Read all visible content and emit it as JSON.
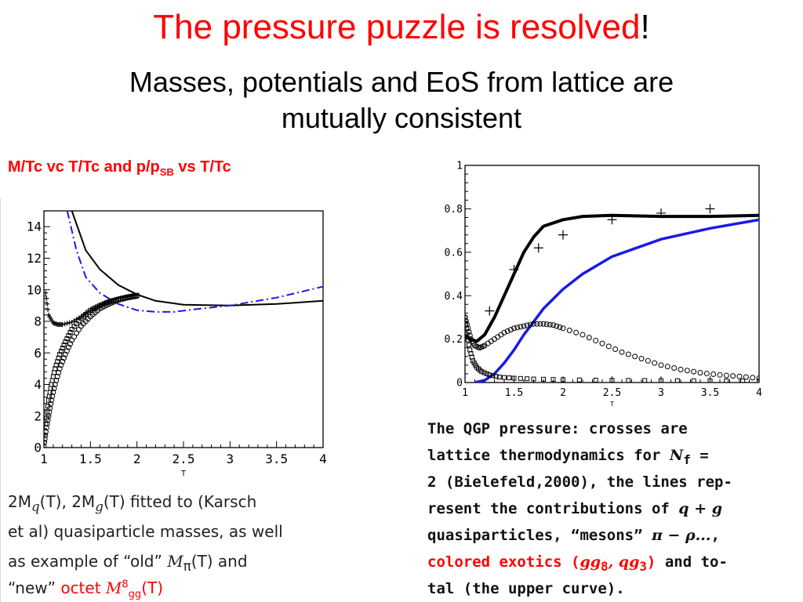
{
  "title": {
    "red": "The pressure puzzle is resolved",
    "black": "!"
  },
  "subtitle": {
    "line1": "Masses, potentials and EoS from lattice are",
    "line2": "mutually consistent"
  },
  "left_label": {
    "a": "M/Tc vc T/Tc  and p/p",
    "sub": "SB",
    "b": " vs T/Tc"
  },
  "left_caption": {
    "l1a": "2M",
    "l1b": "q",
    "l1c": "(T), 2M",
    "l1d": "g",
    "l1e": "(T) fitted to (Karsch",
    "l2": "et al) quasiparticle masses, as well",
    "l3a": "as example of “old” ",
    "l3b": "M",
    "l3c": "π",
    "l3d": "(T) and",
    "l4a": "“new” ",
    "l4b": "octet ",
    "l4c": "M",
    "l4d": "8",
    "l4e": "gg",
    "l4f": "(T)"
  },
  "right_caption": {
    "l1": "The QGP pressure:  crosses are",
    "l2a": "lattice thermodynamics for ",
    "l2b": "N",
    "l2c": "f",
    "l2d": " =",
    "l3": "2 (Bielefeld,2000), the lines rep-",
    "l4a": "resent the contributions of ",
    "l4b": "q + g",
    "l5a": "quasiparticles, “mesons” ",
    "l5b": "π − ρ...",
    "l5c": ",",
    "l6a": "colored exotics (",
    "l6b": "gg",
    "l6c": "8",
    "l6d": ", qg",
    "l6e": "3",
    "l6f": ")",
    "l6g": " and to-",
    "l7": "tal (the upper curve)."
  },
  "chart_data": [
    {
      "type": "line",
      "xlabel": "T",
      "xlim": [
        1,
        4
      ],
      "ylim": [
        0,
        15
      ],
      "xticks": [
        "1",
        "1.5",
        "2",
        "2.5",
        "3",
        "3.5",
        "4"
      ],
      "yticks": [
        "0",
        "2",
        "4",
        "6",
        "8",
        "10",
        "12",
        "14"
      ],
      "colors": {
        "black": "#000000",
        "blue": "#1a1ae6"
      },
      "series": [
        {
          "style": "black-solid",
          "x": [
            1.3,
            1.45,
            1.6,
            1.8,
            2.0,
            2.2,
            2.5,
            3.0,
            3.5,
            4.0
          ],
          "y": [
            15,
            12.5,
            11.3,
            10.3,
            9.7,
            9.3,
            9.05,
            9.0,
            9.1,
            9.3
          ]
        },
        {
          "style": "blue-dashdot",
          "x": [
            1.25,
            1.35,
            1.45,
            1.6,
            1.8,
            2.0,
            2.2,
            2.4,
            2.6,
            3.0,
            3.5,
            4.0
          ],
          "y": [
            15,
            12.5,
            10.8,
            9.8,
            9.1,
            8.7,
            8.6,
            8.6,
            8.75,
            9.0,
            9.5,
            10.2
          ]
        },
        {
          "style": "crosses",
          "x": [
            1.02,
            1.05,
            1.1,
            1.15,
            1.2,
            1.3,
            1.4,
            1.5,
            1.6,
            1.7,
            1.8,
            1.9,
            2.0
          ],
          "y": [
            9.8,
            8.4,
            7.9,
            7.8,
            7.8,
            7.95,
            8.3,
            8.7,
            9.0,
            9.25,
            9.45,
            9.55,
            9.65
          ]
        },
        {
          "style": "squares",
          "x": [
            1.02,
            1.05,
            1.08,
            1.12,
            1.17,
            1.23,
            1.3,
            1.4,
            1.5,
            1.6,
            1.7,
            1.8,
            1.9,
            2.0
          ],
          "y": [
            1.5,
            3.0,
            4.0,
            5.0,
            5.9,
            6.7,
            7.5,
            8.2,
            8.7,
            9.0,
            9.25,
            9.4,
            9.55,
            9.65
          ]
        },
        {
          "style": "circles",
          "x": [
            1.0,
            1.02,
            1.05,
            1.08,
            1.12,
            1.17,
            1.23,
            1.3,
            1.4,
            1.5,
            1.6,
            1.7,
            1.8,
            1.9,
            2.0
          ],
          "y": [
            0.1,
            1.0,
            2.0,
            3.0,
            4.0,
            5.0,
            5.9,
            6.8,
            7.7,
            8.3,
            8.8,
            9.1,
            9.35,
            9.5,
            9.6
          ]
        }
      ]
    },
    {
      "type": "line",
      "xlabel": "T",
      "xlim": [
        1,
        4
      ],
      "ylim": [
        0,
        1
      ],
      "xticks": [
        "1",
        "1.5",
        "2",
        "2.5",
        "3",
        "3.5",
        "4"
      ],
      "yticks": [
        "0",
        "0.2",
        "0.4",
        "0.6",
        "0.8",
        "1"
      ],
      "series": [
        {
          "style": "black-thick",
          "x": [
            1.0,
            1.05,
            1.12,
            1.2,
            1.3,
            1.4,
            1.5,
            1.6,
            1.7,
            1.8,
            2.0,
            2.2,
            2.5,
            3.0,
            3.5,
            4.0
          ],
          "y": [
            0.22,
            0.2,
            0.19,
            0.22,
            0.3,
            0.4,
            0.5,
            0.6,
            0.67,
            0.72,
            0.75,
            0.765,
            0.77,
            0.765,
            0.765,
            0.77
          ]
        },
        {
          "style": "blue-thick",
          "x": [
            1.1,
            1.2,
            1.3,
            1.4,
            1.5,
            1.6,
            1.7,
            1.8,
            2.0,
            2.2,
            2.5,
            3.0,
            3.5,
            4.0
          ],
          "y": [
            0.0,
            0.01,
            0.04,
            0.09,
            0.15,
            0.22,
            0.28,
            0.34,
            0.43,
            0.5,
            0.58,
            0.66,
            0.71,
            0.75
          ]
        },
        {
          "style": "crosses",
          "x": [
            1.25,
            1.5,
            1.75,
            2.0,
            2.5,
            3.0,
            3.5
          ],
          "y": [
            0.33,
            0.52,
            0.62,
            0.68,
            0.75,
            0.78,
            0.8
          ]
        },
        {
          "style": "circles",
          "x": [
            1.0,
            1.03,
            1.06,
            1.1,
            1.15,
            1.2,
            1.3,
            1.4,
            1.5,
            1.6,
            1.7,
            1.8,
            1.9,
            2.0,
            2.2,
            2.4,
            2.6,
            2.8,
            3.0,
            3.2,
            3.4,
            3.6,
            3.8,
            4.0
          ],
          "y": [
            0.3,
            0.25,
            0.2,
            0.17,
            0.16,
            0.17,
            0.2,
            0.23,
            0.25,
            0.26,
            0.27,
            0.27,
            0.265,
            0.25,
            0.22,
            0.18,
            0.14,
            0.11,
            0.08,
            0.06,
            0.045,
            0.035,
            0.028,
            0.02
          ]
        },
        {
          "style": "squares",
          "x": [
            1.0,
            1.02,
            1.05,
            1.08,
            1.12,
            1.17,
            1.25,
            1.35,
            1.5,
            1.7,
            2.0,
            2.5,
            3.0,
            3.5,
            4.0
          ],
          "y": [
            0.3,
            0.22,
            0.15,
            0.1,
            0.07,
            0.05,
            0.035,
            0.025,
            0.02,
            0.016,
            0.013,
            0.01,
            0.009,
            0.008,
            0.007
          ]
        }
      ]
    }
  ]
}
